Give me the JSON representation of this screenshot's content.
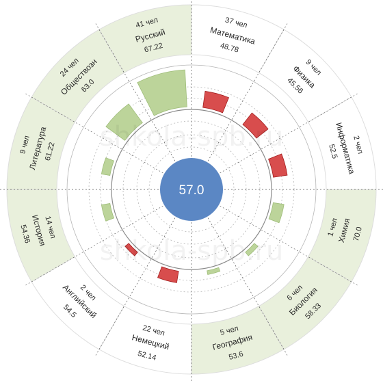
{
  "watermark": "shkola-spb.ru",
  "center": {
    "value": "57.0",
    "color": "#5b87c4"
  },
  "colors": {
    "above": "#bcd49a",
    "above_stroke": "#9fbd7a",
    "below": "#d84d4d",
    "below_stroke": "#a31f1f",
    "neutral": "#cfcfbc",
    "neutral_stroke": "#9d9d8a",
    "ring_band_above": "#e9f0dc",
    "ring_band_other": "#ffffff",
    "grid": "#b5b5b5",
    "frame": "#dddddd",
    "baseline": "#8a8a8a"
  },
  "chart_data": {
    "type": "radial-bar",
    "baseline": 57.0,
    "ranges": [
      {
        "subject": "Математика",
        "score": "48.78",
        "count": "37 чел",
        "status": "below",
        "bar_level": 0.42
      },
      {
        "subject": "Физика",
        "score": "45.56",
        "count": "9 чел",
        "status": "below",
        "bar_level": 0.38
      },
      {
        "subject": "Информатика",
        "score": "52.5",
        "count": "2 чел",
        "status": "below",
        "bar_level": 0.36
      },
      {
        "subject": "Химия",
        "score": "70.0",
        "count": "1 чел",
        "status": "above",
        "bar_level": 0.28
      },
      {
        "subject": "Биология",
        "score": "58.33",
        "count": "6 чел",
        "status": "above",
        "bar_level": 0.12
      },
      {
        "subject": "География",
        "score": "53.6",
        "count": "5 чел",
        "status": "above",
        "bar_level": 0.1
      },
      {
        "subject": "Немецкий",
        "score": "52.14",
        "count": "22 чел",
        "status": "below",
        "bar_level": 0.3
      },
      {
        "subject": "Английский",
        "score": "54.5",
        "count": "2 чел",
        "status": "below",
        "bar_level": 0.12
      },
      {
        "subject": "История",
        "score": "54.36",
        "count": "14 чел",
        "status": "above",
        "bar_level": 0.22
      },
      {
        "subject": "Литература",
        "score": "61.22",
        "count": "9 чел",
        "status": "above",
        "bar_level": 0.22
      },
      {
        "subject": "Обществозн",
        "score": "63.0",
        "count": "24 чел",
        "status": "above",
        "bar_level": 0.6
      },
      {
        "subject": "Русский",
        "score": "67.22",
        "count": "41 чел",
        "status": "above",
        "bar_level": 0.95
      }
    ]
  }
}
